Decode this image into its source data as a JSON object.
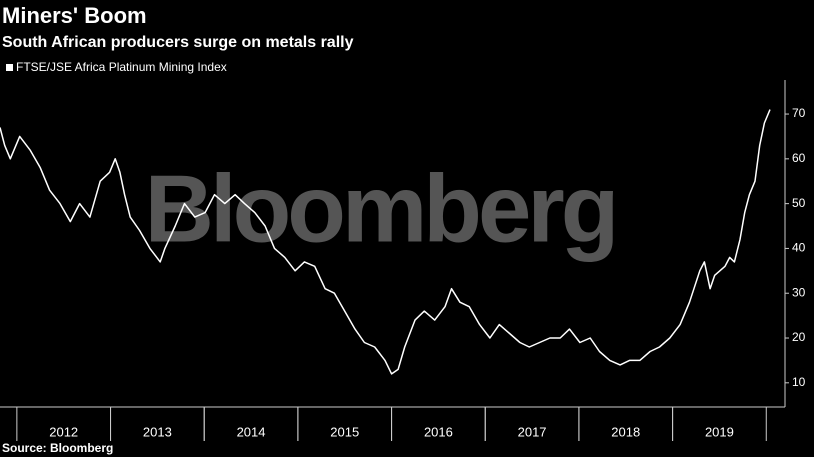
{
  "chart_data": {
    "type": "line",
    "title": "Miners' Boom",
    "subtitle": "South African producers surge on metals rally",
    "watermark": "Bloomberg",
    "source": "Source: Bloomberg",
    "x": [
      2011.82,
      2011.87,
      2011.93,
      2012.03,
      2012.14,
      2012.25,
      2012.35,
      2012.46,
      2012.57,
      2012.67,
      2012.78,
      2012.89,
      2012.99,
      2013.05,
      2013.1,
      2013.15,
      2013.21,
      2013.31,
      2013.42,
      2013.53,
      2013.58,
      2013.69,
      2013.79,
      2013.9,
      2014.01,
      2014.11,
      2014.22,
      2014.33,
      2014.43,
      2014.54,
      2014.65,
      2014.75,
      2014.86,
      2014.97,
      2015.07,
      2015.18,
      2015.29,
      2015.39,
      2015.5,
      2015.61,
      2015.71,
      2015.82,
      2015.93,
      2016.0,
      2016.07,
      2016.14,
      2016.25,
      2016.35,
      2016.46,
      2016.57,
      2016.64,
      2016.73,
      2016.83,
      2016.94,
      2017.05,
      2017.15,
      2017.26,
      2017.37,
      2017.47,
      2017.58,
      2017.69,
      2017.8,
      2017.9,
      2018.01,
      2018.12,
      2018.22,
      2018.33,
      2018.44,
      2018.54,
      2018.65,
      2018.76,
      2018.86,
      2018.97,
      2019.08,
      2019.18,
      2019.29,
      2019.34,
      2019.4,
      2019.45,
      2019.56,
      2019.61,
      2019.66,
      2019.72,
      2019.77,
      2019.82,
      2019.88,
      2019.93,
      2019.98,
      2020.04
    ],
    "series": [
      {
        "name": "FTSE/JSE Africa Platinum Mining Index",
        "color": "#ffffff",
        "values": [
          67,
          63,
          60,
          65,
          62,
          58,
          53,
          50,
          46,
          50,
          47,
          55,
          57,
          60,
          57,
          52,
          47,
          44,
          40,
          37,
          40,
          45,
          50,
          47,
          48,
          52,
          50,
          52,
          50,
          48,
          45,
          40,
          38,
          35,
          37,
          36,
          31,
          30,
          26,
          22,
          19,
          18,
          15,
          12,
          13,
          18,
          24,
          26,
          24,
          27,
          31,
          28,
          27,
          23,
          20,
          23,
          21,
          19,
          18,
          19,
          20,
          20,
          22,
          19,
          20,
          17,
          15,
          14,
          15,
          15,
          17,
          18,
          20,
          23,
          28,
          35,
          37,
          31,
          34,
          36,
          38,
          37,
          42,
          48,
          52,
          55,
          63,
          68,
          71
        ]
      }
    ],
    "xlim": [
      2011.82,
      2020.2
    ],
    "xticks": [
      {
        "value": 2012.5,
        "label": "2012"
      },
      {
        "value": 2013.5,
        "label": "2013"
      },
      {
        "value": 2014.5,
        "label": "2014"
      },
      {
        "value": 2015.5,
        "label": "2015"
      },
      {
        "value": 2016.5,
        "label": "2016"
      },
      {
        "value": 2017.5,
        "label": "2017"
      },
      {
        "value": 2018.5,
        "label": "2018"
      },
      {
        "value": 2019.5,
        "label": "2019"
      }
    ],
    "ylim": [
      4.6,
      77.6
    ],
    "yticks": [
      10,
      20,
      30,
      40,
      50,
      60,
      70
    ]
  }
}
